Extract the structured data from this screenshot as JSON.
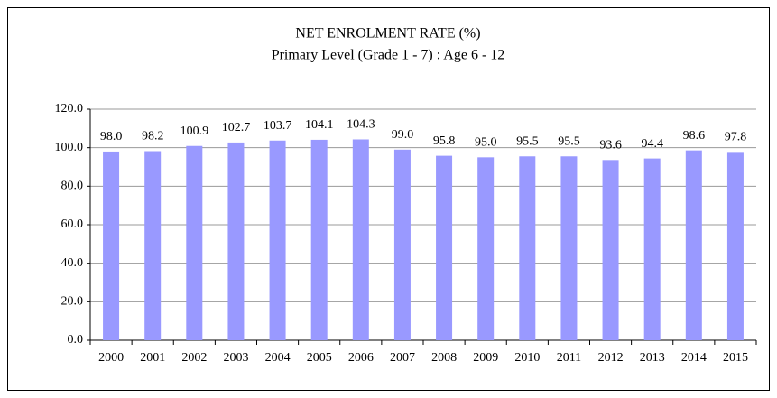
{
  "chart_data": {
    "type": "bar",
    "title": "NET ENROLMENT RATE (%)",
    "subtitle": "Primary Level (Grade 1 - 7) : Age 6 - 12",
    "categories": [
      "2000",
      "2001",
      "2002",
      "2003",
      "2004",
      "2005",
      "2006",
      "2007",
      "2008",
      "2009",
      "2010",
      "2011",
      "2012",
      "2013",
      "2014",
      "2015"
    ],
    "values": [
      98.0,
      98.2,
      100.9,
      102.7,
      103.7,
      104.1,
      104.3,
      99.0,
      95.8,
      95.0,
      95.5,
      95.5,
      93.6,
      94.4,
      98.6,
      97.8
    ],
    "value_labels": [
      "98.0",
      "98.2",
      "100.9",
      "102.7",
      "103.7",
      "104.1",
      "104.3",
      "99.0",
      "95.8",
      "95.0",
      "95.5",
      "95.5",
      "93.6",
      "94.4",
      "98.6",
      "97.8"
    ],
    "color": "#9999ff",
    "ylim": [
      0,
      120
    ],
    "yticks": [
      {
        "value": 0,
        "label": "0.0"
      },
      {
        "value": 20,
        "label": "20.0"
      },
      {
        "value": 40,
        "label": "40.0"
      },
      {
        "value": 60,
        "label": "60.0"
      },
      {
        "value": 80,
        "label": "80.0"
      },
      {
        "value": 100,
        "label": "100.0"
      },
      {
        "value": 120,
        "label": "120.0"
      }
    ],
    "grid": true
  }
}
